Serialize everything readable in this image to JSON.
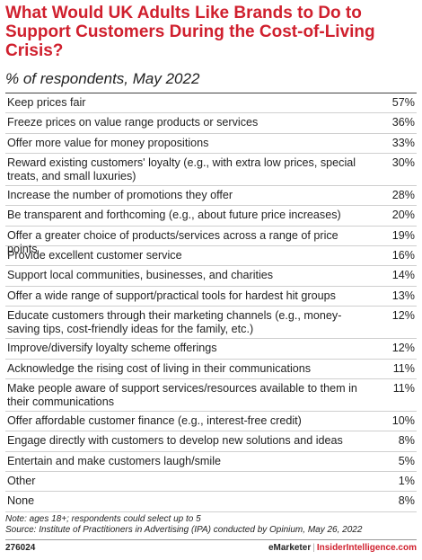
{
  "header": {
    "title": "What Would UK Adults Like Brands to Do to Support Customers During the Cost-of-Living Crisis?",
    "subtitle": "% of respondents, May 2022"
  },
  "chart_data": {
    "type": "table",
    "title": "What Would UK Adults Like Brands to Do to Support Customers During the Cost-of-Living Crisis?",
    "subtitle": "% of respondents, May 2022",
    "rows": [
      {
        "label": "Keep prices fair",
        "value": "57%"
      },
      {
        "label": "Freeze prices on value range products or services",
        "value": "36%"
      },
      {
        "label": "Offer more value for money propositions",
        "value": "33%"
      },
      {
        "label": "Reward existing customers' loyalty (e.g., with extra low prices, special treats, and small luxuries)",
        "value": "30%"
      },
      {
        "label": "Increase the number of promotions they offer",
        "value": "28%"
      },
      {
        "label": "Be transparent and forthcoming (e.g., about future price increases)",
        "value": "20%"
      },
      {
        "label": "Offer a greater choice of products/services across a range of price points",
        "value": "19%"
      },
      {
        "label": "Provide excellent customer service",
        "value": "16%"
      },
      {
        "label": "Support local communities, businesses, and charities",
        "value": "14%"
      },
      {
        "label": "Offer a wide range of support/practical tools for hardest hit groups",
        "value": "13%"
      },
      {
        "label": "Educate customers through their marketing channels (e.g., money-saving tips, cost-friendly ideas for the family, etc.)",
        "value": "12%"
      },
      {
        "label": "Improve/diversify loyalty scheme offerings",
        "value": "12%"
      },
      {
        "label": "Acknowledge the rising cost of living in their communications",
        "value": "11%"
      },
      {
        "label": "Make people aware of support services/resources available to them in their communications",
        "value": "11%"
      },
      {
        "label": "Offer affordable customer finance (e.g., interest-free credit)",
        "value": "10%"
      },
      {
        "label": "Engage directly with customers to develop new solutions and ideas",
        "value": "8%"
      },
      {
        "label": "Entertain and make customers  laugh/smile",
        "value": "5%"
      },
      {
        "label": "Other",
        "value": "1%"
      },
      {
        "label": "None",
        "value": "8%"
      }
    ]
  },
  "notes": {
    "line1": "Note: ages 18+; respondents could select up to 5",
    "line2": "Source: Institute of Practitioners in Advertising (IPA) conducted by Opinium, May 26, 2022"
  },
  "footer": {
    "id": "276024",
    "brand1": "eMarketer",
    "sep": "|",
    "brand2": "InsiderIntelligence.com"
  }
}
